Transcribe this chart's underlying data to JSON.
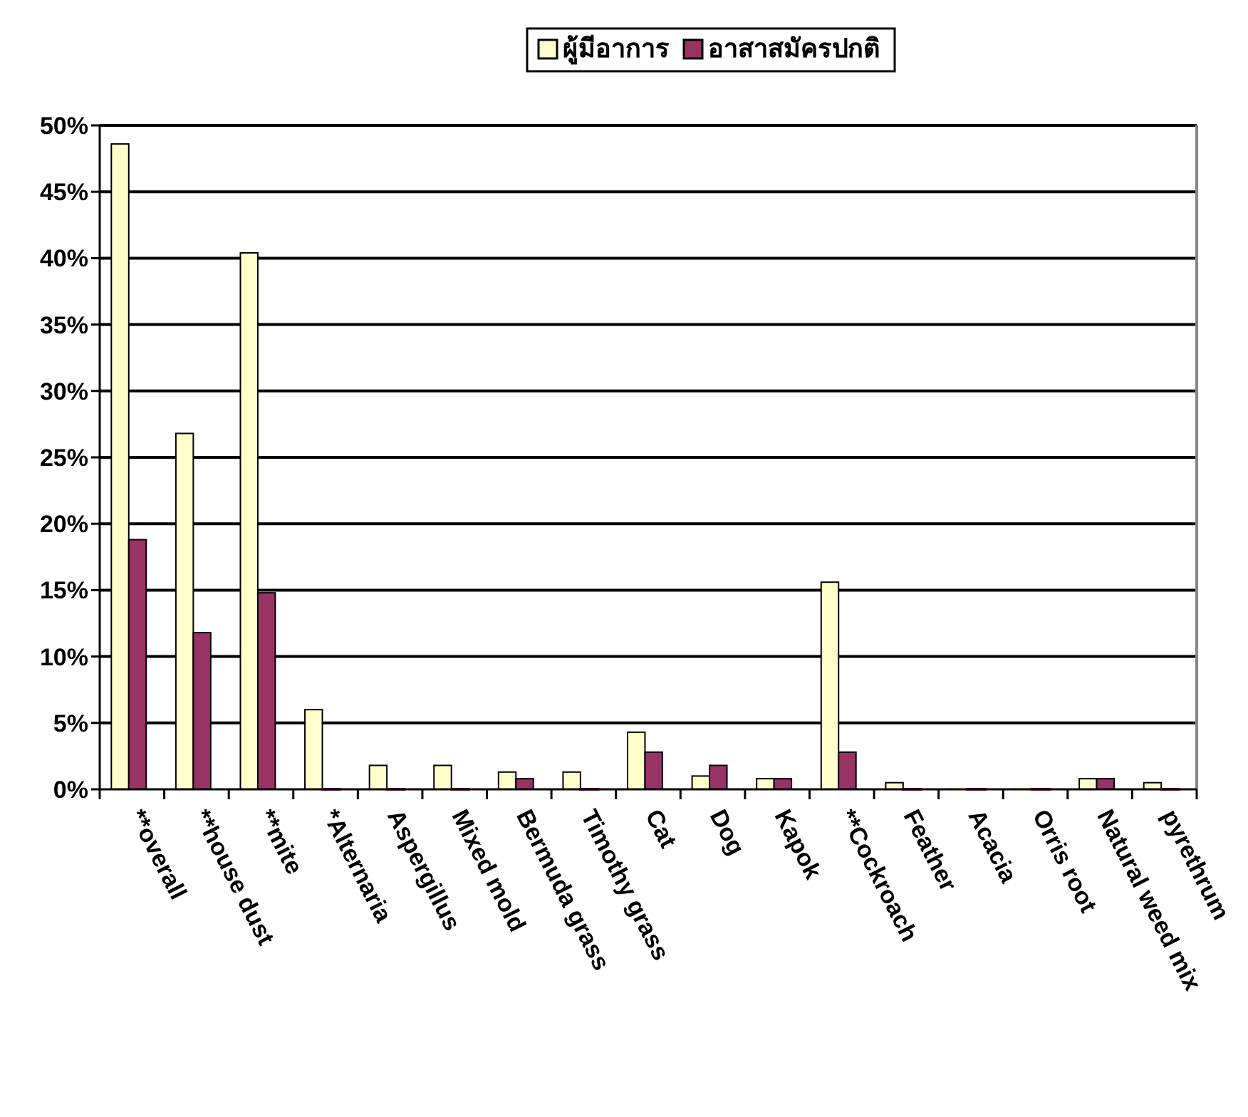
{
  "chart_data": {
    "type": "bar",
    "categories": [
      "**overall",
      "**house dust",
      "**mite",
      "*Alternaria",
      "Aspergillus",
      "Mixed mold",
      "Bermuda grass",
      "Timothy grass",
      "Cat",
      "Dog",
      "Kapok",
      "**Cockroach",
      "Feather",
      "Acacia",
      "Orris root",
      "Natural weed mix",
      "pyrethrum"
    ],
    "series": [
      {
        "name": "ผู้มีอาการ",
        "color": "#ffffcc",
        "values": [
          48.6,
          26.8,
          40.4,
          6.0,
          1.8,
          1.8,
          1.3,
          1.3,
          4.3,
          1.0,
          0.8,
          15.6,
          0.5,
          0.1,
          0.1,
          0.8,
          0.5
        ]
      },
      {
        "name": "อาสาสมัครปกติ",
        "color": "#993366",
        "values": [
          18.8,
          11.8,
          14.8,
          0,
          0,
          0,
          0.8,
          0,
          2.8,
          1.8,
          0.8,
          2.8,
          0,
          0,
          0,
          0.8,
          0
        ]
      }
    ],
    "ylim": [
      0,
      50
    ],
    "yticks": [
      {
        "value": 0,
        "label": "0%"
      },
      {
        "value": 5,
        "label": "5%"
      },
      {
        "value": 10,
        "label": "10%"
      },
      {
        "value": 15,
        "label": "15%"
      },
      {
        "value": 20,
        "label": "20%"
      },
      {
        "value": 25,
        "label": "25%"
      },
      {
        "value": 30,
        "label": "30%"
      },
      {
        "value": 35,
        "label": "35%"
      },
      {
        "value": 40,
        "label": "40%"
      },
      {
        "value": 45,
        "label": "45%"
      },
      {
        "value": 50,
        "label": "50%"
      }
    ],
    "grid": "y",
    "legend": "top"
  }
}
